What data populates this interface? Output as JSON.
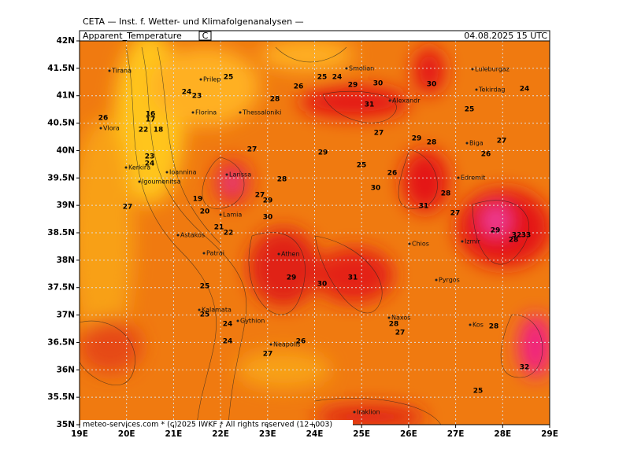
{
  "header": {
    "source": "CETA — Inst. f. Wetter- und Klimafolgenanalysen —",
    "parameter": "Apparent_Temperature",
    "unit": "C",
    "valid": "04.08.2025 15 UTC",
    "footer": "meteo-services.com * (c)2025 IWKF * All rights reserved (12+003)"
  },
  "axes": {
    "lat_labels": [
      "42N",
      "41.5N",
      "41N",
      "40.5N",
      "40N",
      "39.5N",
      "39N",
      "38.5N",
      "38N",
      "37.5N",
      "37N",
      "36.5N",
      "36N",
      "35.5N",
      "35N"
    ],
    "lon_labels": [
      "19E",
      "20E",
      "21E",
      "22E",
      "23E",
      "24E",
      "25E",
      "26E",
      "27E",
      "28E",
      "29E"
    ]
  },
  "cities": [
    "Tirana",
    "Prilep",
    "Florina",
    "Thessaloniki",
    "Smolian",
    "Alexandr",
    "Luleburgaz",
    "Tekirdag",
    "Vlora",
    "Ioannina",
    "Igoumenitsa",
    "Kerkira",
    "Larissa",
    "Lamia",
    "Astakos",
    "Patrai",
    "Athen",
    "Chios",
    "Izmir",
    "Pyrgos",
    "Kalamata",
    "Gythion",
    "Neapolis",
    "Naxos",
    "Kos",
    "Iraklion",
    "Biga",
    "Edremit"
  ],
  "contour_labels": [
    26,
    23,
    25,
    24,
    22,
    18,
    16,
    17,
    23,
    24,
    28,
    26,
    27,
    24,
    25,
    29,
    30,
    31,
    30,
    28,
    29,
    25,
    26,
    27,
    29,
    30,
    31,
    27,
    28,
    29,
    32,
    33,
    27,
    20,
    21,
    22,
    19,
    27,
    29,
    28,
    30,
    31,
    25,
    24,
    26,
    27,
    28,
    25,
    24,
    27,
    25,
    26,
    28,
    29,
    24,
    27,
    30,
    32,
    28,
    25
  ]
}
